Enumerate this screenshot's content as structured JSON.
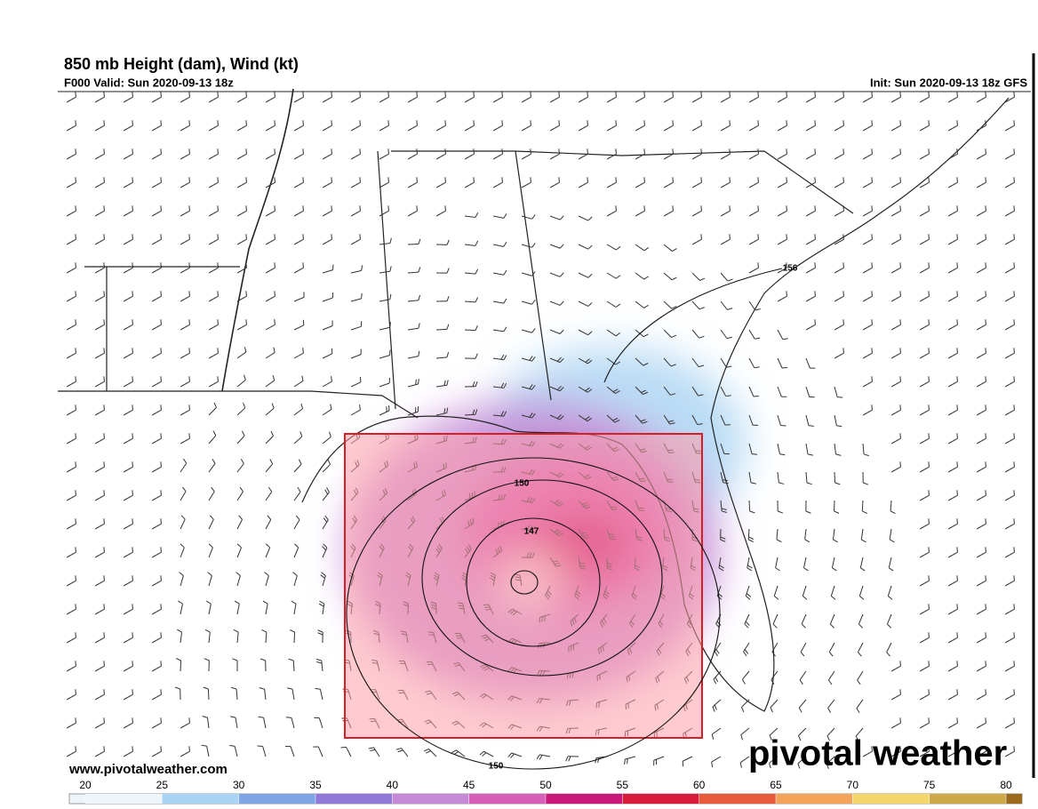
{
  "header": {
    "title": "850 mb Height (dam), Wind (kt)",
    "valid": "F000 Valid: Sun 2020-09-13 18z",
    "init": "Init: Sun 2020-09-13 18z GFS"
  },
  "map": {
    "contour_labels": [
      "156",
      "150",
      "147",
      "150"
    ]
  },
  "footer": {
    "url": "www.pivotalweather.com",
    "brand": "pivotal weather"
  },
  "colorbar": {
    "ticks": [
      20,
      25,
      30,
      35,
      40,
      45,
      50,
      55,
      60,
      65,
      70,
      75,
      80
    ],
    "colors": [
      "#eef6fc",
      "#a9d3f2",
      "#7fa7e6",
      "#8f7ad8",
      "#c58ad6",
      "#d65fb8",
      "#c9177a",
      "#d81c3c",
      "#e85a3a",
      "#f3a35a",
      "#f5d66a",
      "#cfa84a",
      "#9c6a1c"
    ]
  }
}
